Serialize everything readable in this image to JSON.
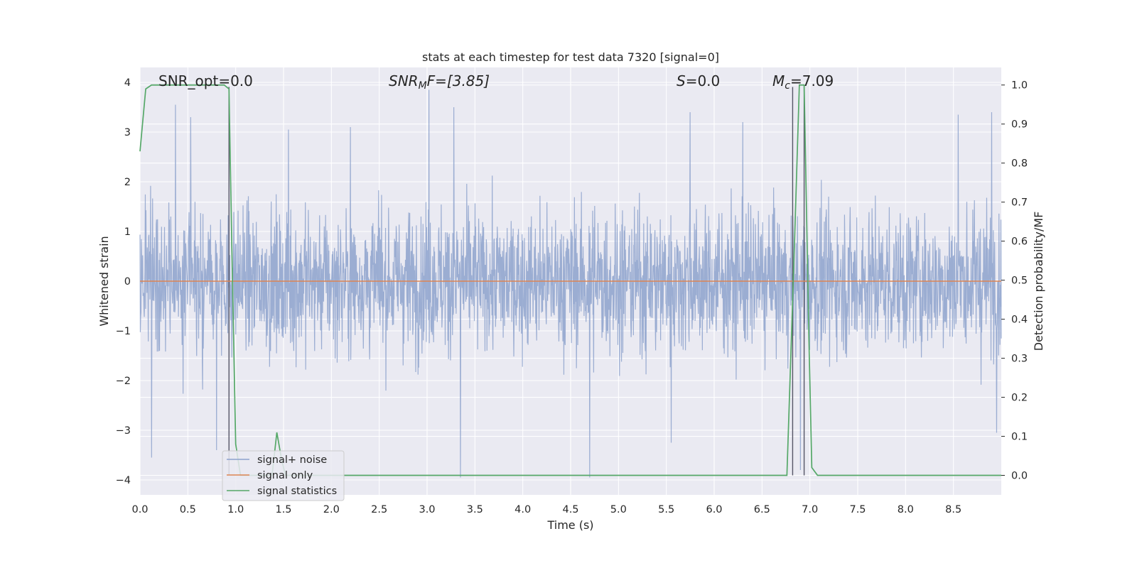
{
  "chart_data": {
    "type": "line",
    "title": "stats at each timestep for test data 7320 [signal=0]",
    "xlabel": "Time (s)",
    "ylabel": "Whitened strain",
    "ylabel_right": "Detection probability/MF",
    "xlim": [
      0,
      9
    ],
    "ylim": [
      -4.3,
      4.3
    ],
    "ylim_right": [
      -0.05,
      1.045
    ],
    "x_ticks": [
      "0.0",
      "0.5",
      "1.0",
      "1.5",
      "2.0",
      "2.5",
      "3.0",
      "3.5",
      "4.0",
      "4.5",
      "5.0",
      "5.5",
      "6.0",
      "6.5",
      "7.0",
      "7.5",
      "8.0",
      "8.5"
    ],
    "y_ticks": [
      "−4",
      "−3",
      "−2",
      "−1",
      "0",
      "1",
      "2",
      "3",
      "4"
    ],
    "y_ticks_right": [
      "0.0",
      "0.1",
      "0.2",
      "0.3",
      "0.4",
      "0.5",
      "0.6",
      "0.7",
      "0.8",
      "0.9",
      "1.0"
    ],
    "grid": true,
    "legend_position": "bottom-left",
    "annotations": {
      "snr_opt": "SNR_opt=0.0",
      "snr_mf_prefix": "SNR",
      "snr_mf_sub": "M",
      "snr_mf_suffix": "F=[3.85]",
      "s_prefix": "S",
      "s_suffix": "=0.0",
      "mc_prefix": "M",
      "mc_sub": "c",
      "mc_suffix": "=7.09"
    },
    "vertical_markers_x": [
      0.93,
      6.82,
      6.94
    ],
    "series": [
      {
        "name": "signal+ noise",
        "axis": "left",
        "color": "#8da2cc",
        "kind": "whitened noise",
        "time_range_s": [
          0.0,
          9.0
        ],
        "typical_abs": 1.6,
        "peak_values": [
          {
            "x": 0.37,
            "y": 3.55
          },
          {
            "x": 0.53,
            "y": 3.3
          },
          {
            "x": 1.55,
            "y": 3.05
          },
          {
            "x": 2.2,
            "y": 3.1
          },
          {
            "x": 3.02,
            "y": 3.85
          },
          {
            "x": 3.28,
            "y": 3.5
          },
          {
            "x": 5.75,
            "y": 3.4
          },
          {
            "x": 6.3,
            "y": 3.2
          },
          {
            "x": 8.55,
            "y": 3.35
          },
          {
            "x": 8.9,
            "y": 3.4
          },
          {
            "x": 0.12,
            "y": -3.55
          },
          {
            "x": 0.8,
            "y": -3.4
          },
          {
            "x": 3.35,
            "y": -3.95
          },
          {
            "x": 4.7,
            "y": -3.95
          },
          {
            "x": 5.55,
            "y": -3.25
          },
          {
            "x": 6.9,
            "y": -3.8
          },
          {
            "x": 8.95,
            "y": -3.05
          }
        ]
      },
      {
        "name": "signal only",
        "axis": "left",
        "color": "#dd8452",
        "x": [
          0,
          9
        ],
        "y": [
          0,
          0
        ]
      },
      {
        "name": "signal statistics",
        "axis": "right",
        "color": "#55a868",
        "x": [
          0.0,
          0.06,
          0.12,
          0.25,
          0.5,
          0.75,
          0.88,
          0.93,
          0.96,
          1.0,
          1.05,
          1.2,
          1.38,
          1.43,
          1.48,
          1.52,
          1.6,
          2.0,
          3.0,
          3.5,
          4.0,
          5.0,
          5.12,
          5.2,
          5.3,
          6.0,
          6.5,
          6.76,
          6.84,
          6.89,
          6.94,
          6.99,
          7.02,
          7.08,
          7.5,
          8.0,
          9.0
        ],
        "y": [
          0.83,
          0.99,
          1.0,
          1.0,
          1.0,
          1.0,
          1.0,
          0.99,
          0.58,
          0.08,
          0.0,
          0.0,
          0.0,
          0.11,
          0.04,
          0.0,
          0.0,
          0.0,
          0.0,
          0.0,
          0.0,
          0.0,
          0.0,
          0.0,
          0.0,
          0.0,
          0.0,
          0.0,
          0.6,
          1.0,
          1.0,
          0.35,
          0.02,
          0.0,
          0.0,
          0.0,
          0.0
        ]
      }
    ]
  }
}
